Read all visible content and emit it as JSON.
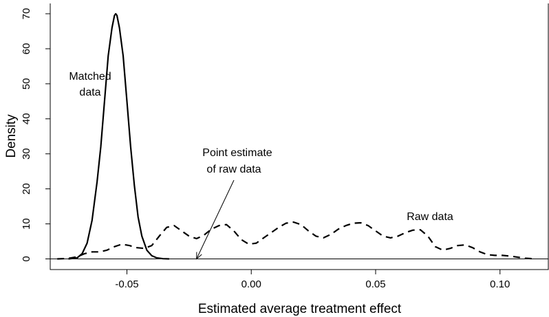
{
  "chart_data": {
    "type": "line",
    "xlabel": "Estimated average treatment effect",
    "ylabel": "Density",
    "xlim": [
      -0.08,
      0.115
    ],
    "ylim": [
      0,
      70
    ],
    "x_ticks": [
      -0.05,
      0.0,
      0.05,
      0.1
    ],
    "x_tick_labels": [
      "-0.05",
      "0.00",
      "0.05",
      "0.10"
    ],
    "y_ticks": [
      0,
      10,
      20,
      30,
      40,
      50,
      60,
      70
    ],
    "y_tick_labels": [
      "0",
      "10",
      "20",
      "30",
      "40",
      "50",
      "60",
      "70"
    ],
    "baseline_y": 0,
    "series": [
      {
        "key": "matched",
        "style": "solid",
        "x": [
          -0.0735,
          -0.07,
          -0.068,
          -0.066,
          -0.064,
          -0.062,
          -0.0605,
          -0.059,
          -0.0575,
          -0.056,
          -0.055,
          -0.0545,
          -0.054,
          -0.053,
          -0.0515,
          -0.05,
          -0.0485,
          -0.047,
          -0.0455,
          -0.044,
          -0.042,
          -0.04,
          -0.038,
          -0.0355,
          -0.033
        ],
        "y": [
          0,
          0.3,
          1.5,
          4.5,
          11,
          22,
          32,
          45,
          58,
          66,
          69.5,
          70,
          69.5,
          66,
          58,
          45,
          32,
          21,
          12,
          6.5,
          2.5,
          0.9,
          0.3,
          0.05,
          0
        ]
      },
      {
        "key": "raw",
        "style": "dashed",
        "x": [
          -0.078,
          -0.074,
          -0.07,
          -0.067,
          -0.064,
          -0.061,
          -0.058,
          -0.055,
          -0.052,
          -0.049,
          -0.046,
          -0.043,
          -0.04,
          -0.037,
          -0.034,
          -0.031,
          -0.028,
          -0.025,
          -0.022,
          -0.019,
          -0.016,
          -0.013,
          -0.01,
          -0.007,
          -0.004,
          -0.001,
          0.002,
          0.005,
          0.008,
          0.011,
          0.014,
          0.017,
          0.02,
          0.023,
          0.026,
          0.029,
          0.032,
          0.035,
          0.038,
          0.041,
          0.044,
          0.047,
          0.05,
          0.053,
          0.056,
          0.059,
          0.062,
          0.065,
          0.068,
          0.071,
          0.074,
          0.077,
          0.08,
          0.083,
          0.086,
          0.089,
          0.092,
          0.095,
          0.098,
          0.101,
          0.104,
          0.107,
          0.11,
          0.113
        ],
        "y": [
          0,
          0.1,
          0.6,
          1.5,
          2.0,
          2.0,
          2.5,
          3.5,
          4.2,
          3.8,
          3.2,
          3.0,
          3.8,
          6.5,
          9.0,
          9.5,
          8.0,
          6.5,
          5.8,
          6.8,
          8.5,
          9.5,
          9.8,
          8.0,
          5.5,
          4.2,
          4.5,
          6.0,
          7.5,
          9.0,
          10.2,
          10.5,
          9.8,
          8.0,
          6.5,
          6.0,
          7.0,
          8.5,
          9.5,
          10.2,
          10.3,
          9.5,
          8.0,
          6.5,
          6.0,
          6.5,
          7.5,
          8.2,
          8.3,
          6.5,
          3.5,
          2.5,
          3.0,
          3.8,
          4.0,
          3.2,
          2.0,
          1.2,
          1.0,
          1.0,
          0.8,
          0.5,
          0.2,
          0.05
        ]
      }
    ],
    "annotations": {
      "matched_line1": "Matched",
      "matched_line2": "data",
      "raw": "Raw data",
      "point_line1": "Point estimate",
      "point_line2": "of raw data",
      "point_x": -0.022
    }
  }
}
